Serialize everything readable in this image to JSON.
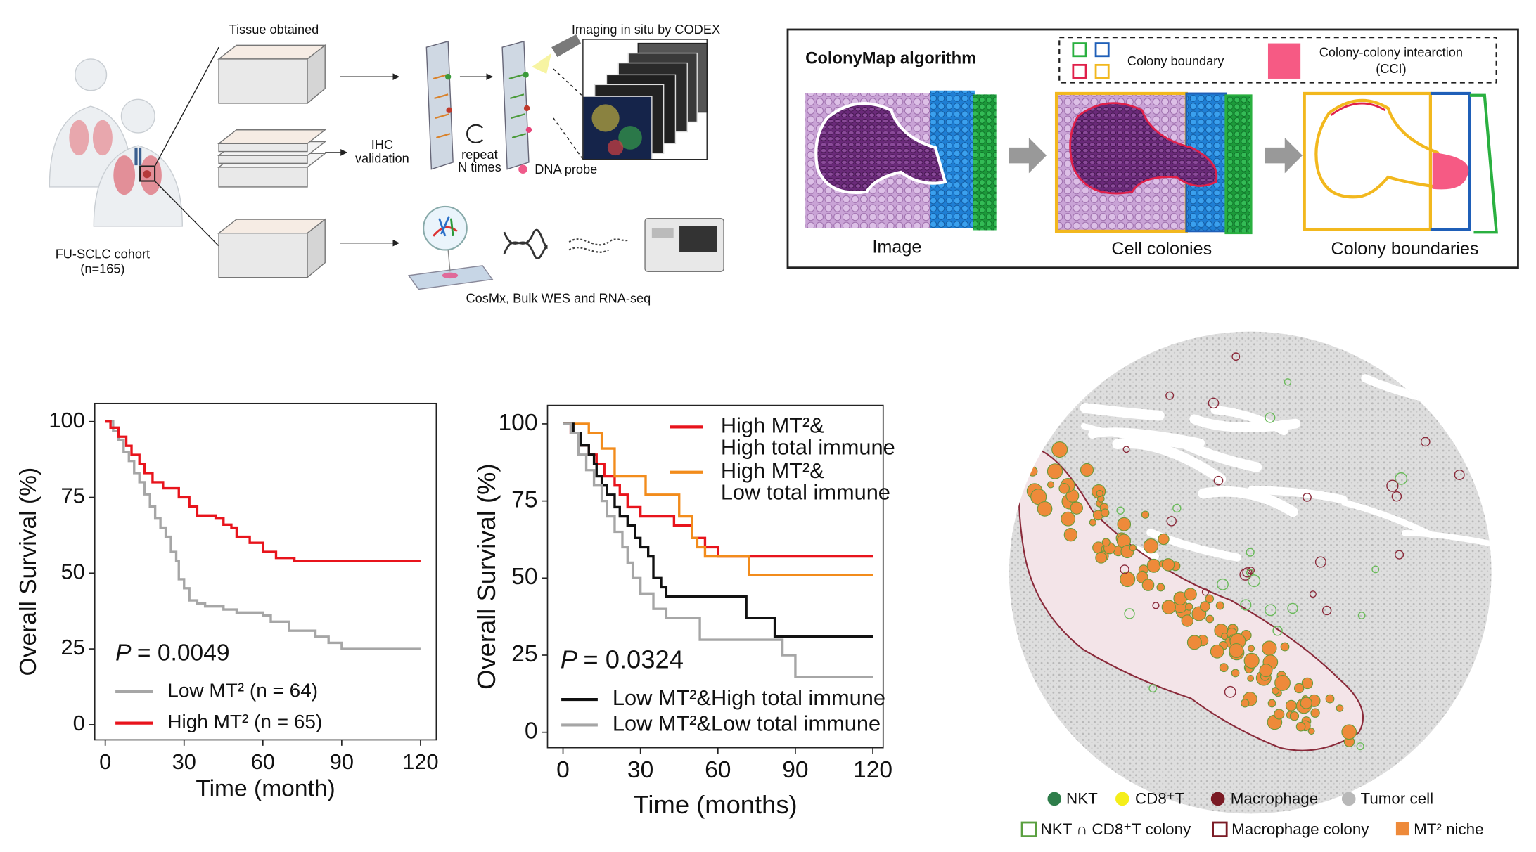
{
  "schematic": {
    "tissue_obtained": "Tissue obtained",
    "imaging": "Imaging in situ by CODEX",
    "ihc": [
      "IHC",
      "validation"
    ],
    "repeat": [
      "repeat",
      "N times"
    ],
    "dna_probe": "DNA probe",
    "cohort": [
      "FU-SCLC cohort",
      "(n=165)"
    ],
    "sequencing": "CosMx, Bulk WES and RNA-seq"
  },
  "colonymap": {
    "title": "ColonyMap algorithm",
    "colony_boundary": "Colony boundary",
    "cci": [
      "Colony-colony intearction",
      "(CCI)"
    ],
    "panels": [
      "Image",
      "Cell colonies",
      "Colony boundaries"
    ]
  },
  "chart_data": [
    {
      "type": "line",
      "step": true,
      "ylabel": "Overall Survival (%)",
      "xlabel": "Time (month)",
      "annotation": {
        "symbol": "P",
        "text": "= 0.0049"
      },
      "xlim": [
        -4,
        126
      ],
      "ylim": [
        -5,
        106
      ],
      "xticks": [
        0,
        30,
        60,
        90,
        120
      ],
      "yticks": [
        0,
        25,
        50,
        75,
        100
      ],
      "series": [
        {
          "name": "Low MT² (n = 64)",
          "color": "#a6a6a6",
          "legend": "lower left",
          "x": [
            0,
            3,
            5,
            7,
            9,
            11,
            13,
            15,
            17,
            19,
            21,
            23,
            25,
            27,
            28,
            30,
            32,
            35,
            38,
            45,
            50,
            60,
            63,
            70,
            80,
            85,
            90,
            120
          ],
          "values": [
            100,
            97,
            94,
            90,
            87,
            83,
            80,
            76,
            72,
            68,
            65,
            62,
            57,
            54,
            48,
            45,
            41,
            40,
            39,
            38,
            37,
            36,
            34,
            31,
            29,
            27,
            25,
            25
          ]
        },
        {
          "name": "High MT² (n = 65)",
          "color": "#e8141c",
          "legend": "lower left",
          "x": [
            0,
            2,
            5,
            8,
            10,
            13,
            15,
            18,
            22,
            28,
            32,
            35,
            42,
            45,
            48,
            50,
            55,
            60,
            65,
            72,
            120
          ],
          "values": [
            100,
            98,
            95,
            92,
            89,
            86,
            83,
            80,
            78,
            75,
            72,
            69,
            68,
            66,
            65,
            62,
            60,
            57,
            55,
            54,
            54
          ]
        }
      ]
    },
    {
      "type": "line",
      "step": true,
      "ylabel": "Overall Survival (%)",
      "xlabel": "Time (months)",
      "annotation": {
        "symbol": "P",
        "text": "= 0.0324"
      },
      "xlim": [
        -6,
        124
      ],
      "ylim": [
        -5,
        106
      ],
      "xticks": [
        0,
        30,
        60,
        90,
        120
      ],
      "yticks": [
        0,
        25,
        50,
        75,
        100
      ],
      "series": [
        {
          "name": [
            "High MT²&",
            "High total immune"
          ],
          "color": "#e8141c",
          "legend": "upper right",
          "x": [
            0,
            3,
            6,
            10,
            13,
            16,
            20,
            22,
            25,
            30,
            43,
            50,
            55,
            60,
            120
          ],
          "values": [
            100,
            97,
            93,
            90,
            87,
            83,
            80,
            77,
            73,
            70,
            67,
            63,
            60,
            57,
            57
          ]
        },
        {
          "name": [
            "High MT²&",
            "Low total immune"
          ],
          "color": "#f28c1c",
          "legend": "upper right",
          "x": [
            0,
            10,
            15,
            20,
            32,
            45,
            50,
            52,
            55,
            72,
            120
          ],
          "values": [
            100,
            97,
            92,
            83,
            77,
            70,
            63,
            60,
            57,
            51,
            51
          ]
        },
        {
          "name": "Low MT²&High total immune",
          "color": "#111111",
          "legend": "lower left",
          "x": [
            0,
            4,
            7,
            10,
            12,
            13,
            15,
            17,
            20,
            22,
            25,
            28,
            30,
            33,
            35,
            38,
            40,
            71,
            82,
            120
          ],
          "values": [
            100,
            97,
            93,
            90,
            87,
            83,
            80,
            77,
            73,
            70,
            67,
            63,
            60,
            57,
            50,
            47,
            44,
            37,
            31,
            31
          ]
        },
        {
          "name": "Low MT²&Low total immune",
          "color": "#a6a6a6",
          "legend": "lower left",
          "x": [
            0,
            3,
            6,
            9,
            12,
            15,
            17,
            20,
            23,
            25,
            27,
            30,
            35,
            40,
            53,
            85,
            90,
            120
          ],
          "values": [
            100,
            97,
            90,
            85,
            80,
            75,
            70,
            65,
            60,
            55,
            50,
            45,
            40,
            37,
            30,
            25,
            18,
            18
          ]
        }
      ]
    }
  ],
  "spatial_map": {
    "legend": [
      "NKT",
      "CD8⁺T",
      "Macrophage",
      "Tumor cell",
      "NKT ∩ CD8⁺T colony",
      "Macrophage colony",
      "MT² niche"
    ]
  }
}
